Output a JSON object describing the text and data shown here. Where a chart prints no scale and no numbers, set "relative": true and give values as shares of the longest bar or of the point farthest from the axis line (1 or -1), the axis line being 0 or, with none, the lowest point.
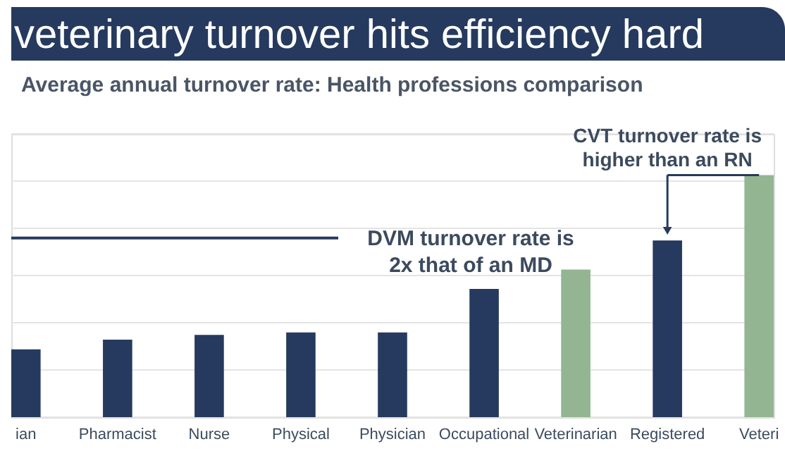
{
  "chart_data": {
    "type": "bar",
    "title": "veterinary turnover hits efficiency hard",
    "subtitle": "Average annual turnover rate: Health professions comparison",
    "categories": [
      "ian",
      "Pharmacist",
      "Nurse",
      "Physical",
      "Physician",
      "Occupational",
      "Veterinarian",
      "Registered",
      "Veteri"
    ],
    "values": [
      0.28,
      0.32,
      0.34,
      0.35,
      0.35,
      0.53,
      0.61,
      0.73,
      1.0
    ],
    "colors": [
      "#253a5e",
      "#253a5e",
      "#253a5e",
      "#253a5e",
      "#253a5e",
      "#253a5e",
      "#93b592",
      "#253a5e",
      "#93b592"
    ],
    "relative": true,
    "grid": true,
    "ref_lines": [
      {
        "axis": "y",
        "value": 0.74,
        "label": "DVM turnover rate is\n2x that of an MD",
        "color": "#253a5e"
      }
    ],
    "annotations": [
      "CVT turnover rate is\nhigher than an RN"
    ]
  }
}
